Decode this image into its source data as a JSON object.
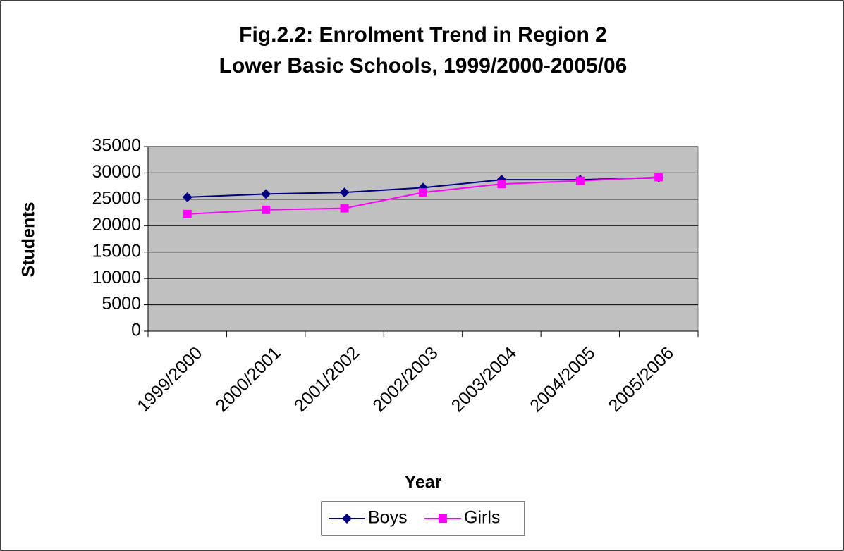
{
  "chart_data": {
    "type": "line",
    "title": "Fig.2.2:  Enrolment Trend in Region 2 Lower Basic Schools, 1999/2000-2005/06",
    "x_label": "Year",
    "y_label": "Students",
    "categories": [
      "1999/2000",
      "2000/2001",
      "2001/2002",
      "2002/2003",
      "2003/2004",
      "2004/2005",
      "2005/2006"
    ],
    "series": [
      {
        "name": "Boys",
        "color": "#000080",
        "marker": "diamond",
        "values": [
          25400,
          26000,
          26300,
          27200,
          28700,
          28700,
          29100
        ]
      },
      {
        "name": "Girls",
        "color": "#ff00ff",
        "marker": "square",
        "values": [
          22200,
          23000,
          23300,
          26300,
          27900,
          28500,
          29200
        ]
      }
    ],
    "ylim": [
      0,
      35000
    ],
    "yticks": [
      0,
      5000,
      10000,
      15000,
      20000,
      25000,
      30000,
      35000
    ],
    "grid": true,
    "plot_background": "#c0c0c0",
    "legend": "bottom"
  }
}
